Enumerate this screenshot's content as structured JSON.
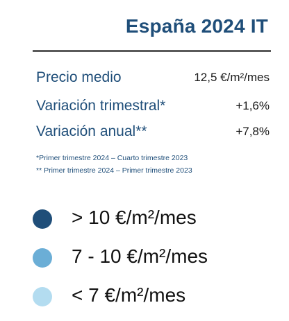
{
  "title": "España 2024 IT",
  "stats": [
    {
      "label": "Precio medio",
      "value": "12,5 €/m²/mes"
    },
    {
      "label": "Variación trimestral*",
      "value": "+1,6%"
    },
    {
      "label": "Variación anual**",
      "value": "+7,8%"
    }
  ],
  "notes": [
    "*Primer trimestre 2024 – Cuarto trimestre 2023",
    "** Primer trimestre 2024 – Primer trimestre 2023"
  ],
  "legend": [
    {
      "label": "> 10 €/m²/mes",
      "color": "#1f4e79"
    },
    {
      "label": "7 - 10 €/m²/mes",
      "color": "#6baed6"
    },
    {
      "label": "< 7 €/m²/mes",
      "color": "#b3dcf0"
    }
  ],
  "colors": {
    "title": "#1f4e79",
    "divider": "#5a5a5a"
  }
}
